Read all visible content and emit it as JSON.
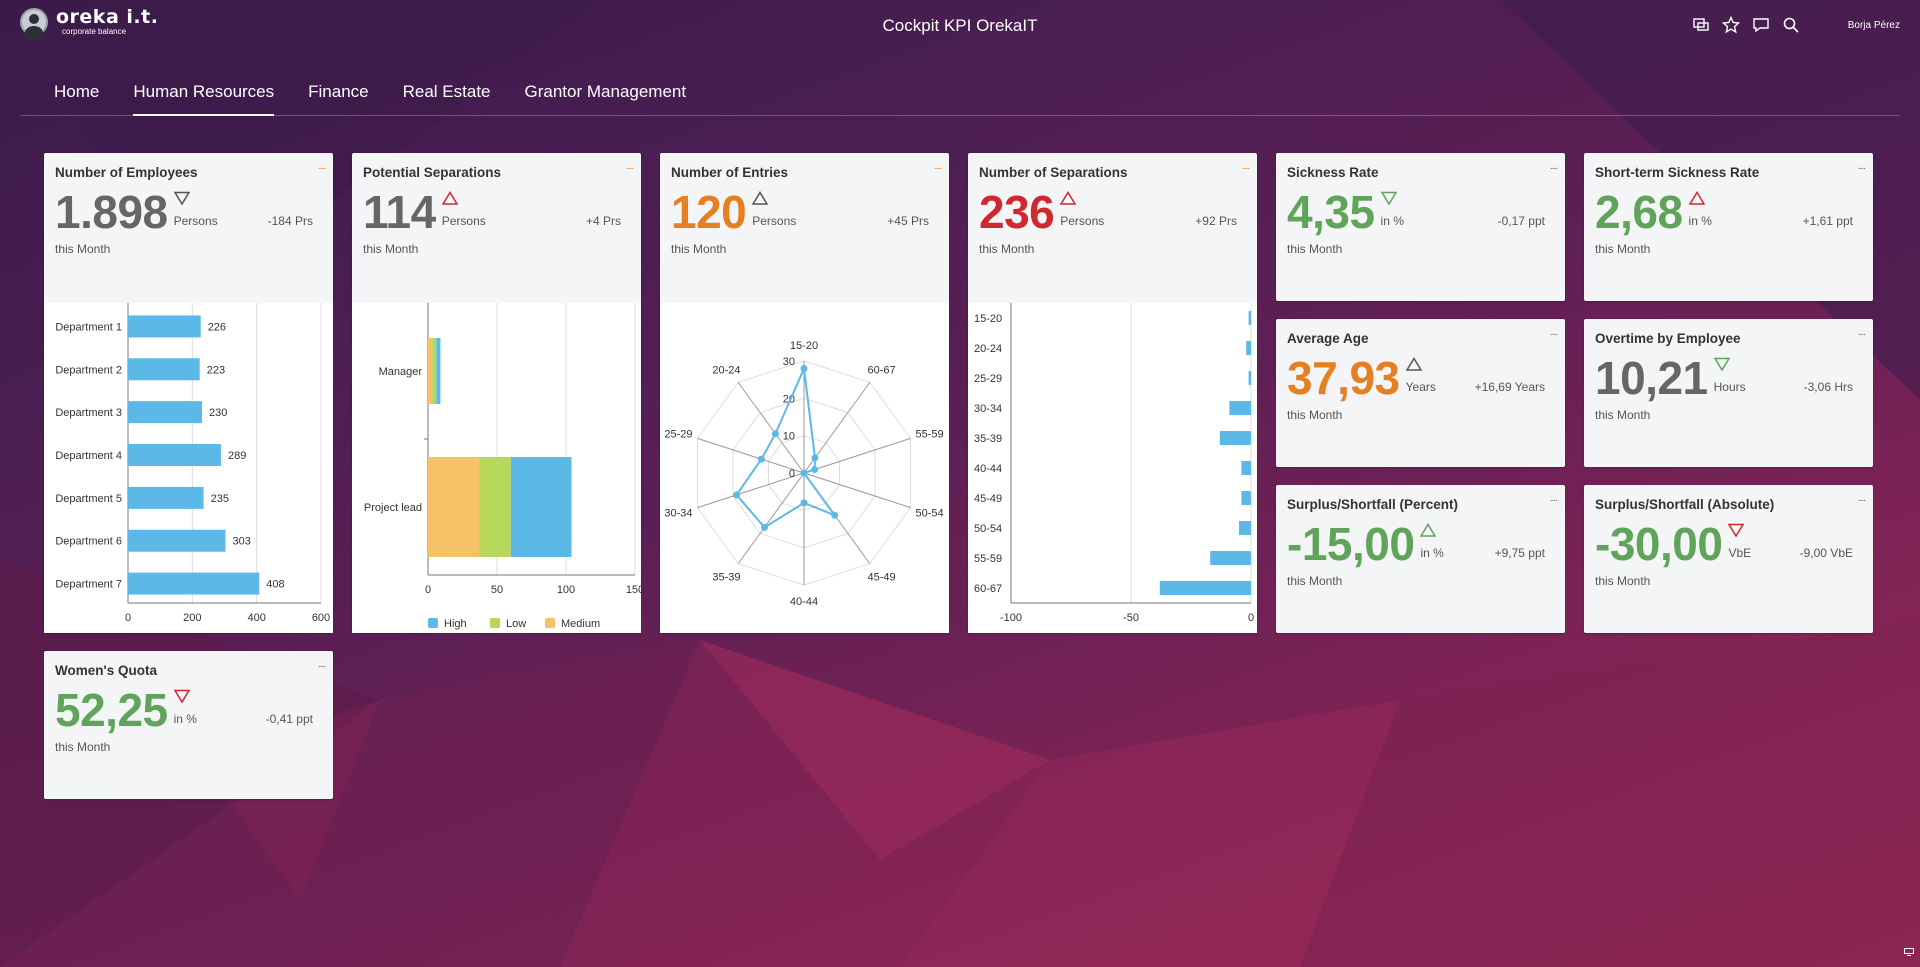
{
  "header": {
    "logo_main": "oreka i.t.",
    "logo_sub": "corporate balance",
    "title": "Cockpit KPI OrekaIT",
    "user": "Borja Pérez"
  },
  "nav": {
    "tabs": [
      {
        "label": "Home"
      },
      {
        "label": "Human Resources",
        "active": true
      },
      {
        "label": "Finance"
      },
      {
        "label": "Real Estate"
      },
      {
        "label": "Grantor Management"
      }
    ]
  },
  "tiles": {
    "employees": {
      "title": "Number of Employees",
      "value": "1.898",
      "unit": "Persons",
      "delta": "-184 Prs",
      "period": "this Month",
      "menu": "....",
      "trend": "down",
      "color": "#666666"
    },
    "potsep": {
      "title": "Potential Separations",
      "value": "114",
      "unit": "Persons",
      "delta": "+4 Prs",
      "period": "this Month",
      "menu": "....",
      "trend": "up",
      "color": "#666666"
    },
    "entries": {
      "title": "Number of Entries",
      "value": "120",
      "unit": "Persons",
      "delta": "+45 Prs",
      "period": "this Month",
      "menu": "....",
      "trend": "up",
      "color": "#e67e22"
    },
    "separations": {
      "title": "Number of Separations",
      "value": "236",
      "unit": "Persons",
      "delta": "+92 Prs",
      "period": "this Month",
      "menu": "....",
      "trend": "up",
      "color": "#d0282f"
    },
    "sickness": {
      "title": "Sickness Rate",
      "value": "4,35",
      "unit": "in %",
      "delta": "-0,17 ppt",
      "period": "this Month",
      "menu": "....",
      "trend": "down",
      "color": "#5fa45a"
    },
    "shortsick": {
      "title": "Short-term Sickness Rate",
      "value": "2,68",
      "unit": "in %",
      "delta": "+1,61 ppt",
      "period": "this Month",
      "menu": "....",
      "trend": "up",
      "color": "#5fa45a"
    },
    "avgage": {
      "title": "Average Age",
      "value": "37,93",
      "unit": "Years",
      "delta": "+16,69 Years",
      "period": "this Month",
      "menu": "....",
      "trend": "up",
      "color": "#e67e22"
    },
    "overtime": {
      "title": "Overtime by Employee",
      "value": "10,21",
      "unit": "Hours",
      "delta": "-3,06 Hrs",
      "period": "this Month",
      "menu": "....",
      "trend": "down",
      "color": "#666666"
    },
    "surpluspct": {
      "title": "Surplus/Shortfall (Percent)",
      "value": "-15,00",
      "unit": "in %",
      "delta": "+9,75 ppt",
      "period": "this Month",
      "menu": "....",
      "trend": "up",
      "color": "#5fa45a"
    },
    "surplusabs": {
      "title": "Surplus/Shortfall (Absolute)",
      "value": "-30,00",
      "unit": "VbE",
      "delta": "-9,00 VbE",
      "period": "this Month",
      "menu": "....",
      "trend": "down",
      "color": "#5fa45a"
    },
    "women": {
      "title": "Women's Quota",
      "value": "52,25",
      "unit": "in %",
      "delta": "-0,41 ppt",
      "period": "this Month",
      "menu": "....",
      "trend": "down",
      "color": "#5fa45a"
    }
  },
  "chart_data": [
    {
      "type": "bar",
      "orientation": "horizontal",
      "categories": [
        "Department 1",
        "Department 2",
        "Department 3",
        "Department 4",
        "Department 5",
        "Department 6",
        "Department 7"
      ],
      "values": [
        226,
        223,
        230,
        289,
        235,
        303,
        408
      ],
      "xlim": [
        0,
        600
      ],
      "xticks": [
        0,
        200,
        400,
        600
      ],
      "color": "#5cb8e6"
    },
    {
      "type": "bar",
      "orientation": "horizontal",
      "stacked": true,
      "categories": [
        "Manager",
        "Project lead"
      ],
      "series": [
        {
          "name": "High",
          "values": [
            3,
            44
          ],
          "color": "#5cb8e6"
        },
        {
          "name": "Low",
          "values": [
            3,
            23
          ],
          "color": "#b5d85a"
        },
        {
          "name": "Medium",
          "values": [
            3,
            37
          ],
          "color": "#f7c267"
        }
      ],
      "stack_order": [
        "Medium",
        "Low",
        "High"
      ],
      "xlim": [
        0,
        150
      ],
      "xticks": [
        0,
        50,
        100,
        150
      ],
      "legend": "bottom"
    },
    {
      "type": "radar",
      "categories": [
        "15-20",
        "60-67",
        "55-59",
        "50-54",
        "45-49",
        "40-44",
        "35-39",
        "30-34",
        "25-29",
        "20-24"
      ],
      "values": [
        28,
        5,
        3,
        0,
        14,
        8,
        18,
        19,
        12,
        13
      ],
      "rlim": [
        0,
        30
      ],
      "rticks": [
        0,
        10,
        20,
        30
      ],
      "color": "#5cb8e6"
    },
    {
      "type": "bar",
      "orientation": "horizontal",
      "categories": [
        "15-20",
        "20-24",
        "25-29",
        "30-34",
        "35-39",
        "40-44",
        "45-49",
        "50-54",
        "55-59",
        "60-67"
      ],
      "values": [
        -1,
        -2,
        -1,
        -9,
        -13,
        -4,
        -4,
        -5,
        -17,
        -38
      ],
      "xlim": [
        -100,
        0
      ],
      "xticks": [
        -100,
        -50,
        0
      ],
      "color": "#5cb8e6"
    }
  ]
}
